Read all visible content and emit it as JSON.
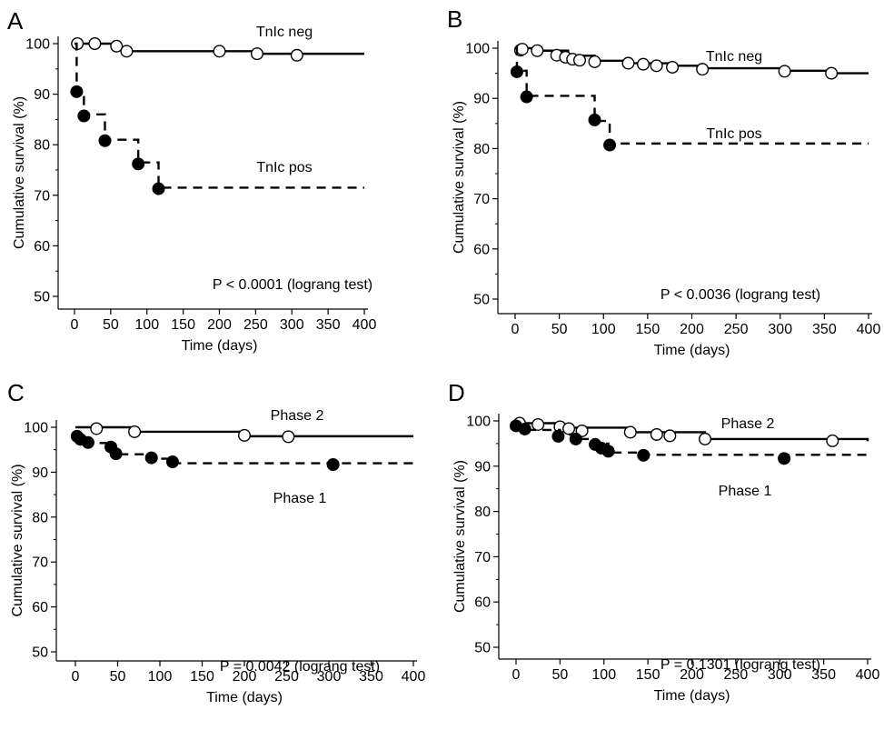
{
  "chart_data": [
    {
      "type": "line",
      "panel": "A",
      "xlabel": "Time (days)",
      "ylabel": "Cumulative survival (%)",
      "xlim": [
        0,
        400
      ],
      "ylim": [
        50,
        100
      ],
      "xticks": [
        0,
        50,
        100,
        150,
        200,
        250,
        300,
        350,
        400
      ],
      "yticks": [
        50,
        60,
        70,
        80,
        90,
        100
      ],
      "grid": false,
      "annotation": "P < 0.0001 (lograng test)",
      "series": [
        {
          "name": "TnIc neg",
          "style": "solid",
          "marker": "open-circle",
          "x": [
            0,
            28,
            58,
            72,
            200,
            252,
            307,
            400
          ],
          "y": [
            100,
            100,
            99,
            98.5,
            98.5,
            98,
            98,
            98
          ],
          "markers_x": [
            4,
            28,
            58,
            72,
            200,
            252,
            307
          ],
          "markers_y": [
            100,
            100,
            99.5,
            98.5,
            98.5,
            98,
            97.7
          ]
        },
        {
          "name": "TnIc pos",
          "style": "dashed",
          "marker": "filled-circle",
          "x": [
            0,
            3,
            13,
            42,
            88,
            116,
            400
          ],
          "y": [
            100,
            90.5,
            86,
            81,
            76.5,
            71.5,
            71.5
          ],
          "markers_x": [
            3,
            13,
            42,
            88,
            116
          ],
          "markers_y": [
            90.5,
            85.7,
            80.8,
            76.2,
            71.3
          ]
        }
      ]
    },
    {
      "type": "line",
      "panel": "B",
      "xlabel": "Time (days)",
      "ylabel": "Cumulative survival (%)",
      "xlim": [
        0,
        400
      ],
      "ylim": [
        50,
        100
      ],
      "xticks": [
        0,
        50,
        100,
        150,
        200,
        250,
        300,
        350,
        400
      ],
      "yticks": [
        50,
        60,
        70,
        80,
        90,
        100
      ],
      "grid": false,
      "annotation": "P < 0.0036 (lograng test)",
      "series": [
        {
          "name": "TnIc neg",
          "style": "solid",
          "marker": "open-circle",
          "x": [
            0,
            30,
            60,
            90,
            130,
            180,
            210,
            300,
            360,
            400
          ],
          "y": [
            100,
            99.5,
            98.5,
            97.5,
            97,
            96.5,
            96,
            95.5,
            95,
            95
          ],
          "markers_x": [
            6,
            8,
            25,
            47,
            57,
            65,
            73,
            90,
            128,
            145,
            160,
            178,
            212,
            305,
            358
          ],
          "markers_y": [
            99.6,
            99.8,
            99.5,
            98.6,
            98.2,
            97.8,
            97.6,
            97.3,
            97,
            96.8,
            96.5,
            96.2,
            95.8,
            95.4,
            95
          ]
        },
        {
          "name": "TnIc pos",
          "style": "dashed",
          "marker": "filled-circle",
          "x": [
            0,
            2,
            13,
            90,
            107,
            400
          ],
          "y": [
            100,
            95.5,
            90.5,
            85.5,
            81,
            81
          ],
          "markers_x": [
            2,
            13,
            90,
            107
          ],
          "markers_y": [
            95.3,
            90.3,
            85.7,
            80.7
          ]
        }
      ]
    },
    {
      "type": "line",
      "panel": "C",
      "xlabel": "Time (days)",
      "ylabel": "Cumulative survival (%)",
      "xlim": [
        0,
        400
      ],
      "ylim": [
        50,
        100
      ],
      "xticks": [
        0,
        50,
        100,
        150,
        200,
        250,
        300,
        350,
        400
      ],
      "yticks": [
        50,
        60,
        70,
        80,
        90,
        100
      ],
      "grid": false,
      "annotation": "P = 0.0042 (lograng test)",
      "series": [
        {
          "name": "Phase 2",
          "style": "solid",
          "marker": "open-circle",
          "x": [
            0,
            70,
            200,
            400
          ],
          "y": [
            100,
            99,
            98,
            98
          ],
          "markers_x": [
            25,
            70,
            200,
            252
          ],
          "markers_y": [
            99.7,
            99,
            98.2,
            97.9
          ]
        },
        {
          "name": "Phase 1",
          "style": "dashed",
          "marker": "filled-circle",
          "x": [
            0,
            3,
            15,
            45,
            90,
            115,
            400
          ],
          "y": [
            98,
            97,
            96.5,
            94,
            93,
            92,
            92
          ],
          "markers_x": [
            2,
            6,
            15,
            42,
            48,
            90,
            115,
            305
          ],
          "markers_y": [
            98,
            97.3,
            96.6,
            95.6,
            94.1,
            93.2,
            92.3,
            91.7
          ]
        }
      ]
    },
    {
      "type": "line",
      "panel": "D",
      "xlabel": "Time (days)",
      "ylabel": "Cumulative survival (%)",
      "xlim": [
        0,
        400
      ],
      "ylim": [
        50,
        100
      ],
      "xticks": [
        0,
        50,
        100,
        150,
        200,
        250,
        300,
        350,
        400
      ],
      "yticks": [
        50,
        60,
        70,
        80,
        90,
        100
      ],
      "grid": false,
      "annotation": "P = 0.1301 (lograng test)",
      "series": [
        {
          "name": "Phase 2",
          "style": "solid",
          "marker": "open-circle",
          "x": [
            0,
            50,
            130,
            215,
            400
          ],
          "y": [
            99.5,
            98.5,
            97.5,
            96,
            95.5
          ],
          "markers_x": [
            4,
            25,
            50,
            60,
            75,
            130,
            160,
            175,
            215,
            360
          ],
          "markers_y": [
            99.5,
            99.2,
            98.7,
            98.3,
            97.8,
            97.5,
            97,
            96.7,
            96,
            95.6
          ]
        },
        {
          "name": "Phase 1",
          "style": "dashed",
          "marker": "filled-circle",
          "x": [
            0,
            10,
            50,
            70,
            90,
            105,
            145,
            400
          ],
          "y": [
            99,
            98,
            97,
            96,
            95,
            93,
            92.5,
            92
          ],
          "markers_x": [
            0,
            10,
            48,
            68,
            90,
            97,
            105,
            145,
            305
          ],
          "markers_y": [
            98.9,
            98.2,
            96.6,
            96,
            94.8,
            94,
            93.3,
            92.4,
            91.7
          ]
        }
      ]
    }
  ]
}
